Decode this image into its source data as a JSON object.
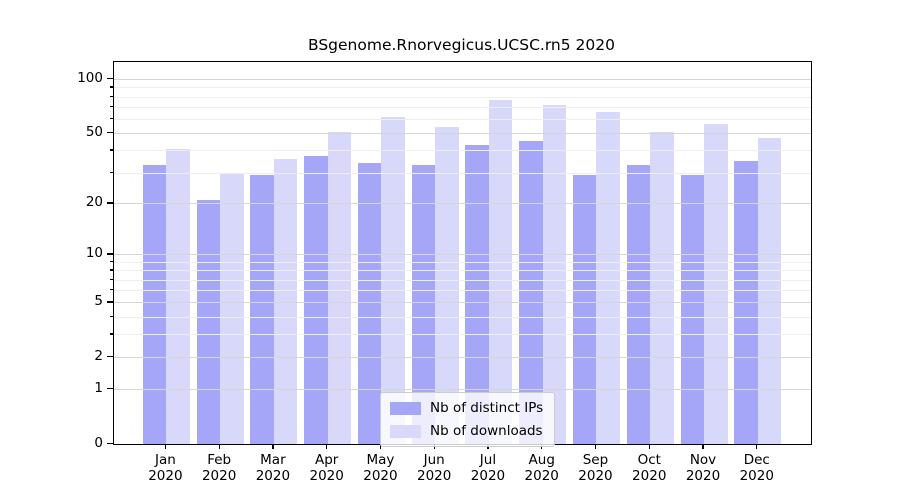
{
  "title": "BSgenome.Rnorvegicus.UCSC.rn5 2020",
  "legend": {
    "items": [
      {
        "label": "Nb of distinct IPs",
        "color": "#a6a6f8"
      },
      {
        "label": "Nb of downloads",
        "color": "#d8d8fb"
      }
    ]
  },
  "axes": {
    "y_major_ticks": [
      0,
      1,
      2,
      5,
      10,
      20,
      50,
      100
    ],
    "y_minor_ticks": [
      3,
      4,
      6,
      7,
      8,
      9,
      30,
      40,
      60,
      70,
      80,
      90
    ],
    "x_year": "2020"
  },
  "chart_data": {
    "type": "bar",
    "title": "BSgenome.Rnorvegicus.UCSC.rn5 2020",
    "categories": [
      "Jan",
      "Feb",
      "Mar",
      "Apr",
      "May",
      "Jun",
      "Jul",
      "Aug",
      "Sep",
      "Oct",
      "Nov",
      "Dec"
    ],
    "category_year": "2020",
    "series": [
      {
        "name": "Nb of distinct IPs",
        "color": "#a6a6f8",
        "values": [
          33,
          21,
          29,
          37,
          34,
          33,
          43,
          45,
          29,
          33,
          29,
          35
        ]
      },
      {
        "name": "Nb of downloads",
        "color": "#d8d8fb",
        "values": [
          41,
          30,
          36,
          51,
          62,
          54,
          77,
          72,
          66,
          51,
          56,
          47
        ]
      }
    ],
    "y_scale": "log1p",
    "ylim": [
      0,
      124
    ],
    "y_major_ticks": [
      0,
      1,
      2,
      5,
      10,
      20,
      50,
      100
    ],
    "y_minor_gridlines": [
      3,
      4,
      6,
      7,
      8,
      9,
      30,
      40,
      60,
      70,
      80,
      90
    ],
    "grid": "horizontal, drawn over bars",
    "legend_position": "bottom-center"
  }
}
